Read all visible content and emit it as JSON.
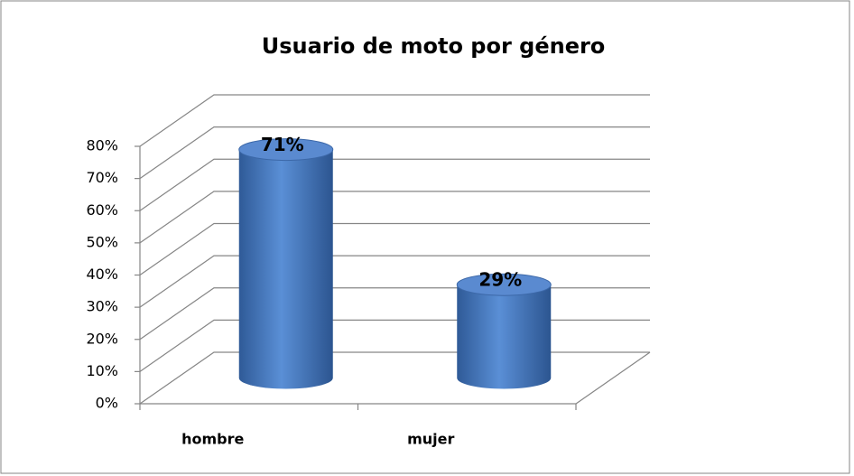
{
  "chart_data": {
    "type": "bar",
    "title": "Usuario de moto por género",
    "categories": [
      "hombre",
      "mujer"
    ],
    "values": [
      71,
      29
    ],
    "value_labels": [
      "71%",
      "29%"
    ],
    "color": "#4f81bd",
    "ylim": [
      0,
      80
    ],
    "yticks": [
      {
        "value": 0,
        "label": "0%"
      },
      {
        "value": 10,
        "label": "10%"
      },
      {
        "value": 20,
        "label": "20%"
      },
      {
        "value": 30,
        "label": "30%"
      },
      {
        "value": 40,
        "label": "40%"
      },
      {
        "value": 50,
        "label": "50%"
      },
      {
        "value": 60,
        "label": "60%"
      },
      {
        "value": 70,
        "label": "70%"
      },
      {
        "value": 80,
        "label": "80%"
      }
    ],
    "grid": true
  }
}
